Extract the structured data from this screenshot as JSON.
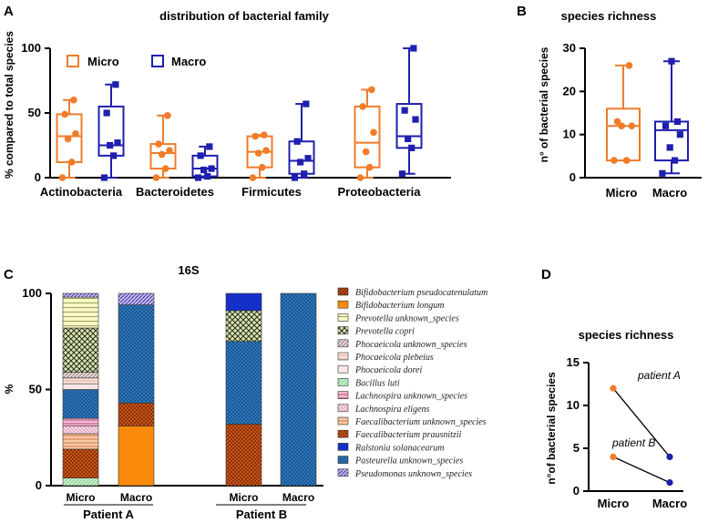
{
  "colors": {
    "micro": "#F07C2A",
    "macro": "#1F1FAE"
  },
  "panels": {
    "A": {
      "letter": "A",
      "title": "distribution of bacterial family",
      "ylabel": "% compared to total species",
      "yticks": [
        "0",
        "50",
        "100"
      ],
      "legend": [
        "Micro",
        "Macro"
      ],
      "categories": [
        "Actinobacteria",
        "Bacteroidetes",
        "Firmicutes",
        "Proteobacteria"
      ]
    },
    "B": {
      "letter": "B",
      "title": "species richness",
      "ylabel": "n° of bacterial species",
      "yticks": [
        "0",
        "10",
        "20",
        "30"
      ],
      "groups": [
        "Micro",
        "Macro"
      ]
    },
    "C": {
      "letter": "C",
      "title": "16S",
      "ylabel": "%",
      "yticks": [
        "0",
        "50",
        "100"
      ],
      "bar_labels": [
        "Micro",
        "Macro",
        "Micro",
        "Macro"
      ],
      "patients": [
        "Patient A",
        "Patient B"
      ],
      "legend": [
        "Bifidobacterium pseudocatenulatum",
        "Bifidobacterium longum",
        "Prevotella unknown_species",
        "Prevotella copri",
        "Phocaeicola unknown_species",
        "Phocaeicola plebeius",
        "Phocaeicola dorei",
        "Bacillus luti",
        "Lachnospira unknown_species",
        "Lachnospira eligens",
        "Faecalibacterium unknown_species",
        "Faecalibacterium prausnitzii",
        "Ralstonia solanacearum",
        "Pasteurella unknown_species",
        "Pseudomonas unknown_species"
      ]
    },
    "D": {
      "letter": "D",
      "title": "species richness",
      "ylabel": "n°of bacterial species",
      "yticks": [
        "0",
        "5",
        "10",
        "15"
      ],
      "groups": [
        "Micro",
        "Macro"
      ],
      "annotations": [
        "patient A",
        "patient B"
      ]
    }
  },
  "chart_data": [
    {
      "type": "box",
      "title": "distribution of bacterial family",
      "ylabel": "% compared to total species",
      "ylim": [
        0,
        100
      ],
      "categories": [
        "Actinobacteria",
        "Bacteroidetes",
        "Firmicutes",
        "Proteobacteria"
      ],
      "series": [
        {
          "name": "Micro",
          "boxes": [
            {
              "min": 0,
              "q1": 12,
              "median": 32,
              "q3": 49,
              "max": 60,
              "points": [
                0,
                12,
                30,
                34,
                49,
                60
              ]
            },
            {
              "min": 0,
              "q1": 7,
              "median": 19,
              "q3": 26,
              "max": 48,
              "points": [
                0,
                7,
                18,
                21,
                26,
                48
              ]
            },
            {
              "min": 0,
              "q1": 8,
              "median": 20,
              "q3": 32,
              "max": 33,
              "points": [
                0,
                8,
                19,
                21,
                32,
                33
              ]
            },
            {
              "min": 0,
              "q1": 8,
              "median": 27,
              "q3": 55,
              "max": 68,
              "points": [
                0,
                8,
                20,
                35,
                55,
                68
              ]
            }
          ]
        },
        {
          "name": "Macro",
          "boxes": [
            {
              "min": 0,
              "q1": 17,
              "median": 25,
              "q3": 55,
              "max": 72,
              "points": [
                0,
                17,
                25,
                27,
                50,
                72
              ]
            },
            {
              "min": 0,
              "q1": 1,
              "median": 7,
              "q3": 17,
              "max": 24,
              "points": [
                0,
                1,
                6,
                7,
                17,
                24
              ]
            },
            {
              "min": 0,
              "q1": 3,
              "median": 13,
              "q3": 28,
              "max": 57,
              "points": [
                0,
                3,
                12,
                15,
                28,
                57
              ]
            },
            {
              "min": 3,
              "q1": 23,
              "median": 32,
              "q3": 57,
              "max": 100,
              "points": [
                3,
                23,
                30,
                45,
                52,
                100
              ]
            }
          ]
        }
      ]
    },
    {
      "type": "box",
      "title": "species richness",
      "ylabel": "n° of bacterial species",
      "ylim": [
        0,
        30
      ],
      "categories": [
        "Micro",
        "Macro"
      ],
      "boxes": [
        {
          "name": "Micro",
          "min": 4,
          "q1": 4,
          "median": 12,
          "q3": 16,
          "max": 26,
          "points": [
            4,
            4,
            12,
            12,
            13,
            26
          ]
        },
        {
          "name": "Macro",
          "min": 1,
          "q1": 4,
          "median": 11,
          "q3": 13,
          "max": 27,
          "points": [
            1,
            4,
            7,
            10,
            12,
            13,
            27
          ]
        }
      ]
    },
    {
      "type": "stacked_bar",
      "title": "16S",
      "ylabel": "%",
      "ylim": [
        0,
        100
      ],
      "groups": [
        "Patient A",
        "Patient B"
      ],
      "bars": [
        {
          "patient": "Patient A",
          "label": "Micro",
          "segments": [
            {
              "taxon": "Bacillus luti",
              "value": 4
            },
            {
              "taxon": "Faecalibacterium prausnitzii",
              "value": 15
            },
            {
              "taxon": "Faecalibacterium unknown_species",
              "value": 8
            },
            {
              "taxon": "Lachnospira eligens",
              "value": 4
            },
            {
              "taxon": "Lachnospira unknown_species",
              "value": 4
            },
            {
              "taxon": "Pasteurella unknown_species",
              "value": 15
            },
            {
              "taxon": "Phocaeicola dorei",
              "value": 3
            },
            {
              "taxon": "Phocaeicola plebeius",
              "value": 3
            },
            {
              "taxon": "Phocaeicola unknown_species",
              "value": 3
            },
            {
              "taxon": "Prevotella copri",
              "value": 23
            },
            {
              "taxon": "Prevotella unknown_species",
              "value": 16
            },
            {
              "taxon": "Pseudomonas unknown_species",
              "value": 2
            }
          ]
        },
        {
          "patient": "Patient A",
          "label": "Macro",
          "segments": [
            {
              "taxon": "Bifidobacterium longum",
              "value": 31
            },
            {
              "taxon": "Faecalibacterium prausnitzii",
              "value": 12
            },
            {
              "taxon": "Pasteurella unknown_species",
              "value": 51
            },
            {
              "taxon": "Pseudomonas unknown_species",
              "value": 6
            }
          ]
        },
        {
          "patient": "Patient B",
          "label": "Micro",
          "segments": [
            {
              "taxon": "Faecalibacterium prausnitzii",
              "value": 32
            },
            {
              "taxon": "Pasteurella unknown_species",
              "value": 43
            },
            {
              "taxon": "Prevotella copri",
              "value": 16
            },
            {
              "taxon": "Ralstonia solanacearum",
              "value": 9
            }
          ]
        },
        {
          "patient": "Patient B",
          "label": "Macro",
          "segments": [
            {
              "taxon": "Pasteurella unknown_species",
              "value": 100
            }
          ]
        }
      ]
    },
    {
      "type": "line",
      "title": "species richness",
      "ylabel": "n°of bacterial species",
      "ylim": [
        0,
        15
      ],
      "x": [
        "Micro",
        "Macro"
      ],
      "series": [
        {
          "name": "patient A",
          "values": [
            12,
            4
          ]
        },
        {
          "name": "patient B",
          "values": [
            4,
            1
          ]
        }
      ]
    }
  ]
}
